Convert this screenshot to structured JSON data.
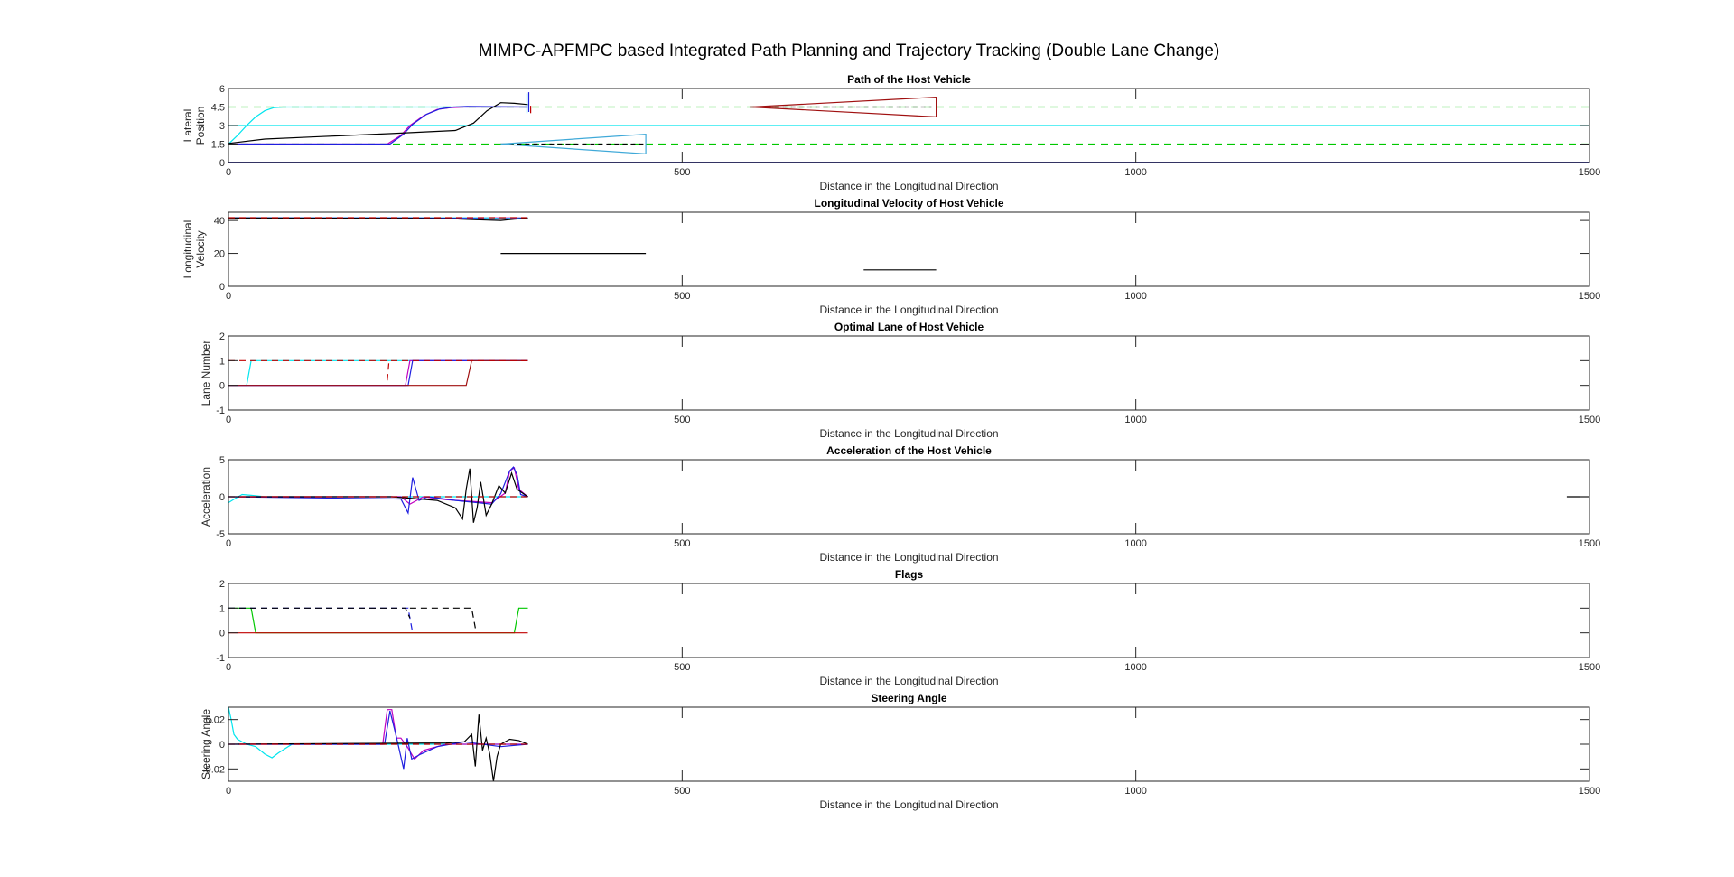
{
  "figure": {
    "title": "MIMPC-APFMPC based Integrated Path Planning and Trajectory Tracking (Double Lane Change)"
  },
  "colors": {
    "axis": "#262626",
    "black": "#000000",
    "cyan": "#00e5ee",
    "blue": "#1f1fe0",
    "magenta": "#c000c0",
    "red": "#c00000",
    "green": "#00c800",
    "darkred": "#a01010",
    "lightblue": "#3fa9d8",
    "navy": "#000080"
  },
  "chart_data": [
    {
      "id": "path",
      "type": "line",
      "title": "Path of the Host Vehicle",
      "xlabel": "Distance in the Longitudinal Direction",
      "ylabel": [
        "Lateral",
        "Position"
      ],
      "xlim": [
        0,
        1500
      ],
      "ylim": [
        0,
        6
      ],
      "xticks": [
        0,
        500,
        1000,
        1500
      ],
      "yticks": [
        0,
        1.5,
        3,
        4.5,
        6
      ],
      "ytick_labels": [
        "0",
        "1.5",
        "3",
        "4.5",
        "6"
      ],
      "series": [
        {
          "color": "#00c800",
          "dash": "8,6",
          "x": [
            0,
            1500
          ],
          "y": [
            1.5,
            1.5
          ]
        },
        {
          "color": "#00c800",
          "dash": "8,6",
          "x": [
            0,
            1500
          ],
          "y": [
            4.5,
            4.5
          ]
        },
        {
          "color": "#00e5ee",
          "x": [
            0,
            1500
          ],
          "y": [
            3,
            3
          ]
        },
        {
          "color": "#000080",
          "x": [
            0,
            1500
          ],
          "y": [
            0.02,
            0.02
          ]
        },
        {
          "color": "#000080",
          "x": [
            0,
            1500
          ],
          "y": [
            5.98,
            5.98
          ]
        },
        {
          "color": "#00e5ee",
          "x": [
            0,
            10,
            20,
            30,
            40,
            50,
            60,
            330
          ],
          "y": [
            1.5,
            2.2,
            3.0,
            3.7,
            4.2,
            4.45,
            4.5,
            4.5
          ]
        },
        {
          "color": "#c000c0",
          "x": [
            0,
            175,
            190,
            200,
            215,
            230,
            245,
            260,
            330
          ],
          "y": [
            1.5,
            1.5,
            2.2,
            3.0,
            3.8,
            4.3,
            4.45,
            4.5,
            4.5
          ]
        },
        {
          "color": "#1f1fe0",
          "x": [
            0,
            178,
            193,
            203,
            218,
            233,
            248,
            263,
            330
          ],
          "y": [
            1.5,
            1.5,
            2.3,
            3.1,
            3.9,
            4.35,
            4.5,
            4.55,
            4.5
          ]
        },
        {
          "color": "#000000",
          "x": [
            0,
            40,
            100,
            180,
            250,
            270,
            285,
            300,
            315,
            330
          ],
          "y": [
            1.55,
            1.9,
            2.1,
            2.35,
            2.6,
            3.2,
            4.2,
            4.85,
            4.8,
            4.7
          ]
        },
        {
          "color": "#000000",
          "dash": "5,4",
          "x": [
            300,
            460
          ],
          "y": [
            1.5,
            1.5
          ]
        },
        {
          "color": "#000000",
          "dash": "5,4",
          "x": [
            575,
            775
          ],
          "y": [
            4.5,
            4.5
          ]
        },
        {
          "color": "#3fa9d8",
          "x": [
            300,
            460,
            460,
            300
          ],
          "y": [
            1.5,
            2.3,
            0.7,
            1.5
          ]
        },
        {
          "color": "#a01010",
          "x": [
            575,
            780,
            780,
            575
          ],
          "y": [
            4.5,
            5.3,
            3.7,
            4.5
          ]
        },
        {
          "color": "#1f1fe0",
          "x": [
            331,
            331
          ],
          "y": [
            4.1,
            5.7
          ]
        },
        {
          "color": "#00e5ee",
          "x": [
            329,
            329
          ],
          "y": [
            4.0,
            5.6
          ]
        },
        {
          "color": "#c00000",
          "x": [
            333,
            333
          ],
          "y": [
            4.0,
            4.6
          ]
        }
      ]
    },
    {
      "id": "velocity",
      "type": "line",
      "title": "Longitudinal Velocity of Host Vehicle",
      "xlabel": "Distance in the Longitudinal Direction",
      "ylabel": [
        "Longitudinal",
        "Velocity"
      ],
      "xlim": [
        0,
        1500
      ],
      "ylim": [
        0,
        45
      ],
      "xticks": [
        0,
        500,
        1000,
        1500
      ],
      "yticks": [
        0,
        20,
        40
      ],
      "ytick_labels": [
        "0",
        "20",
        "40"
      ],
      "series": [
        {
          "color": "#c000c0",
          "x": [
            0,
            330
          ],
          "y": [
            41.6,
            41.6
          ]
        },
        {
          "color": "#00e5ee",
          "x": [
            0,
            290,
            300,
            310,
            330
          ],
          "y": [
            41.6,
            41.6,
            41.0,
            41.3,
            41.6
          ]
        },
        {
          "color": "#1f1fe0",
          "x": [
            0,
            200,
            240,
            270,
            290,
            310,
            330
          ],
          "y": [
            41.6,
            41.5,
            41.4,
            41.2,
            40.8,
            41.0,
            41.5
          ]
        },
        {
          "color": "#000000",
          "x": [
            0,
            200,
            250,
            270,
            285,
            300,
            315,
            330
          ],
          "y": [
            41.5,
            41.3,
            41.0,
            40.5,
            40.2,
            40.0,
            40.8,
            41.3
          ]
        },
        {
          "color": "#c00000",
          "dash": "7,5",
          "x": [
            0,
            330
          ],
          "y": [
            41.7,
            41.7
          ]
        },
        {
          "color": "#000000",
          "x": [
            300,
            460
          ],
          "y": [
            20,
            20
          ]
        },
        {
          "color": "#000000",
          "x": [
            700,
            780
          ],
          "y": [
            10,
            10
          ]
        }
      ]
    },
    {
      "id": "lane",
      "type": "line",
      "title": "Optimal Lane of Host Vehicle",
      "xlabel": "Distance in the Longitudinal Direction",
      "ylabel": [
        "Lane Number"
      ],
      "xlim": [
        0,
        1500
      ],
      "ylim": [
        -1,
        2
      ],
      "xticks": [
        0,
        500,
        1000,
        1500
      ],
      "yticks": [
        -1,
        0,
        1,
        2
      ],
      "ytick_labels": [
        "-1",
        "0",
        "1",
        "2"
      ],
      "series": [
        {
          "color": "#00e5ee",
          "x": [
            0,
            20,
            25,
            330
          ],
          "y": [
            0,
            0,
            1,
            1
          ]
        },
        {
          "color": "#c000c0",
          "x": [
            0,
            195,
            200,
            330
          ],
          "y": [
            0,
            0,
            1,
            1
          ]
        },
        {
          "color": "#1f1fe0",
          "x": [
            0,
            198,
            203,
            330
          ],
          "y": [
            0,
            0,
            1,
            1
          ]
        },
        {
          "color": "#a01010",
          "x": [
            0,
            262,
            268,
            330
          ],
          "y": [
            0,
            0,
            1,
            1
          ]
        },
        {
          "color": "#c00000",
          "dash": "7,5",
          "x": [
            175,
            177
          ],
          "y": [
            0.2,
            1
          ]
        },
        {
          "color": "#c00000",
          "dash": "7,5",
          "x": [
            0,
            330
          ],
          "y": [
            1,
            1
          ]
        }
      ]
    },
    {
      "id": "accel",
      "type": "line",
      "title": "Acceleration of the Host Vehicle",
      "xlabel": "Distance in the Longitudinal Direction",
      "ylabel": [
        "Acceleration"
      ],
      "xlim": [
        0,
        1500
      ],
      "ylim": [
        -5,
        5
      ],
      "xticks": [
        0,
        500,
        1000,
        1500
      ],
      "yticks": [
        -5,
        0,
        5
      ],
      "ytick_labels": [
        "-5",
        "0",
        "5"
      ],
      "series": [
        {
          "color": "#00e5ee",
          "x": [
            0,
            8,
            15,
            25,
            40,
            330
          ],
          "y": [
            -0.8,
            -0.2,
            0.3,
            0.2,
            0,
            0
          ]
        },
        {
          "color": "#c000c0",
          "x": [
            0,
            190,
            200,
            215,
            240,
            290,
            305,
            310,
            315,
            320,
            330
          ],
          "y": [
            0,
            0,
            -1.0,
            0,
            -0.4,
            -0.8,
            0.5,
            3.5,
            3.9,
            1.0,
            0
          ]
        },
        {
          "color": "#1f1fe0",
          "x": [
            0,
            190,
            198,
            203,
            210,
            220,
            250,
            275,
            290,
            300,
            310,
            314,
            318,
            322,
            330
          ],
          "y": [
            0,
            -0.3,
            -2.2,
            2.6,
            -0.5,
            0,
            -0.5,
            -0.8,
            -1.0,
            0.4,
            3.5,
            4.0,
            3.0,
            0.3,
            0
          ]
        },
        {
          "color": "#000000",
          "x": [
            0,
            180,
            230,
            250,
            258,
            262,
            266,
            270,
            274,
            278,
            284,
            290,
            298,
            305,
            312,
            318,
            324,
            330
          ],
          "y": [
            0,
            0,
            -0.5,
            -1.5,
            -3.0,
            1.0,
            3.8,
            -3.5,
            -1.5,
            2.0,
            -2.5,
            -1.0,
            1.5,
            0.5,
            3.2,
            1.0,
            0.5,
            0
          ]
        },
        {
          "color": "#c00000",
          "dash": "7,5",
          "x": [
            0,
            330
          ],
          "y": [
            0,
            0
          ]
        },
        {
          "color": "#000000",
          "x": [
            1475,
            1500
          ],
          "y": [
            0,
            0
          ]
        }
      ]
    },
    {
      "id": "flags",
      "type": "line",
      "title": "Flags",
      "xlabel": "Distance in the Longitudinal Direction",
      "ylabel": [],
      "xlim": [
        0,
        1500
      ],
      "ylim": [
        -1,
        2
      ],
      "xticks": [
        0,
        500,
        1000,
        1500
      ],
      "yticks": [
        -1,
        0,
        1,
        2
      ],
      "ytick_labels": [
        "-1",
        "0",
        "1",
        "2"
      ],
      "series": [
        {
          "color": "#00c800",
          "x": [
            0,
            25,
            30,
            315,
            320,
            330
          ],
          "y": [
            1,
            1,
            0,
            0,
            1,
            1
          ]
        },
        {
          "color": "#1f1fe0",
          "dash": "7,5",
          "x": [
            0,
            198,
            203
          ],
          "y": [
            1,
            1,
            0
          ]
        },
        {
          "color": "#000000",
          "dash": "7,5",
          "x": [
            0,
            195,
            200
          ],
          "y": [
            1,
            1,
            0.6
          ]
        },
        {
          "color": "#000000",
          "dash": "7,5",
          "x": [
            200,
            268,
            273
          ],
          "y": [
            1,
            1,
            0
          ]
        },
        {
          "color": "#c00000",
          "x": [
            0,
            330
          ],
          "y": [
            0,
            0
          ]
        }
      ]
    },
    {
      "id": "steer",
      "type": "line",
      "title": "Steering Angle",
      "xlabel": "Distance in the Longitudinal Direction",
      "ylabel": [
        "Steering Angle"
      ],
      "xlim": [
        0,
        1500
      ],
      "ylim": [
        -0.03,
        0.03
      ],
      "xticks": [
        0,
        500,
        1000,
        1500
      ],
      "yticks": [
        -0.02,
        0,
        0.02
      ],
      "ytick_labels": [
        "-0.02",
        "0",
        "0.02"
      ],
      "series": [
        {
          "color": "#00e5ee",
          "x": [
            0,
            3,
            6,
            10,
            20,
            30,
            40,
            48,
            55,
            70,
            330
          ],
          "y": [
            0.03,
            0.02,
            0.008,
            0.004,
            0,
            -0.002,
            -0.008,
            -0.011,
            -0.007,
            0,
            0
          ]
        },
        {
          "color": "#c000c0",
          "x": [
            0,
            170,
            175,
            180,
            185,
            190,
            197,
            205,
            215,
            240,
            330
          ],
          "y": [
            0,
            0,
            0.028,
            0.028,
            0.005,
            0.005,
            -0.002,
            -0.012,
            -0.005,
            0,
            0
          ]
        },
        {
          "color": "#1f1fe0",
          "x": [
            0,
            172,
            178,
            185,
            193,
            197,
            202,
            212,
            230,
            260,
            300,
            330
          ],
          "y": [
            0,
            0,
            0.027,
            0.006,
            -0.02,
            0.005,
            -0.012,
            -0.008,
            -0.002,
            0.002,
            -0.002,
            0
          ]
        },
        {
          "color": "#000000",
          "x": [
            0,
            240,
            260,
            268,
            272,
            276,
            280,
            284,
            288,
            292,
            296,
            300,
            310,
            320,
            330
          ],
          "y": [
            0,
            0.001,
            0.002,
            0.008,
            -0.018,
            0.024,
            -0.005,
            0.005,
            -0.008,
            -0.03,
            -0.01,
            0,
            0.004,
            0.003,
            0
          ]
        },
        {
          "color": "#c00000",
          "dash": "7,5",
          "x": [
            0,
            330
          ],
          "y": [
            0,
            0
          ]
        }
      ]
    }
  ]
}
